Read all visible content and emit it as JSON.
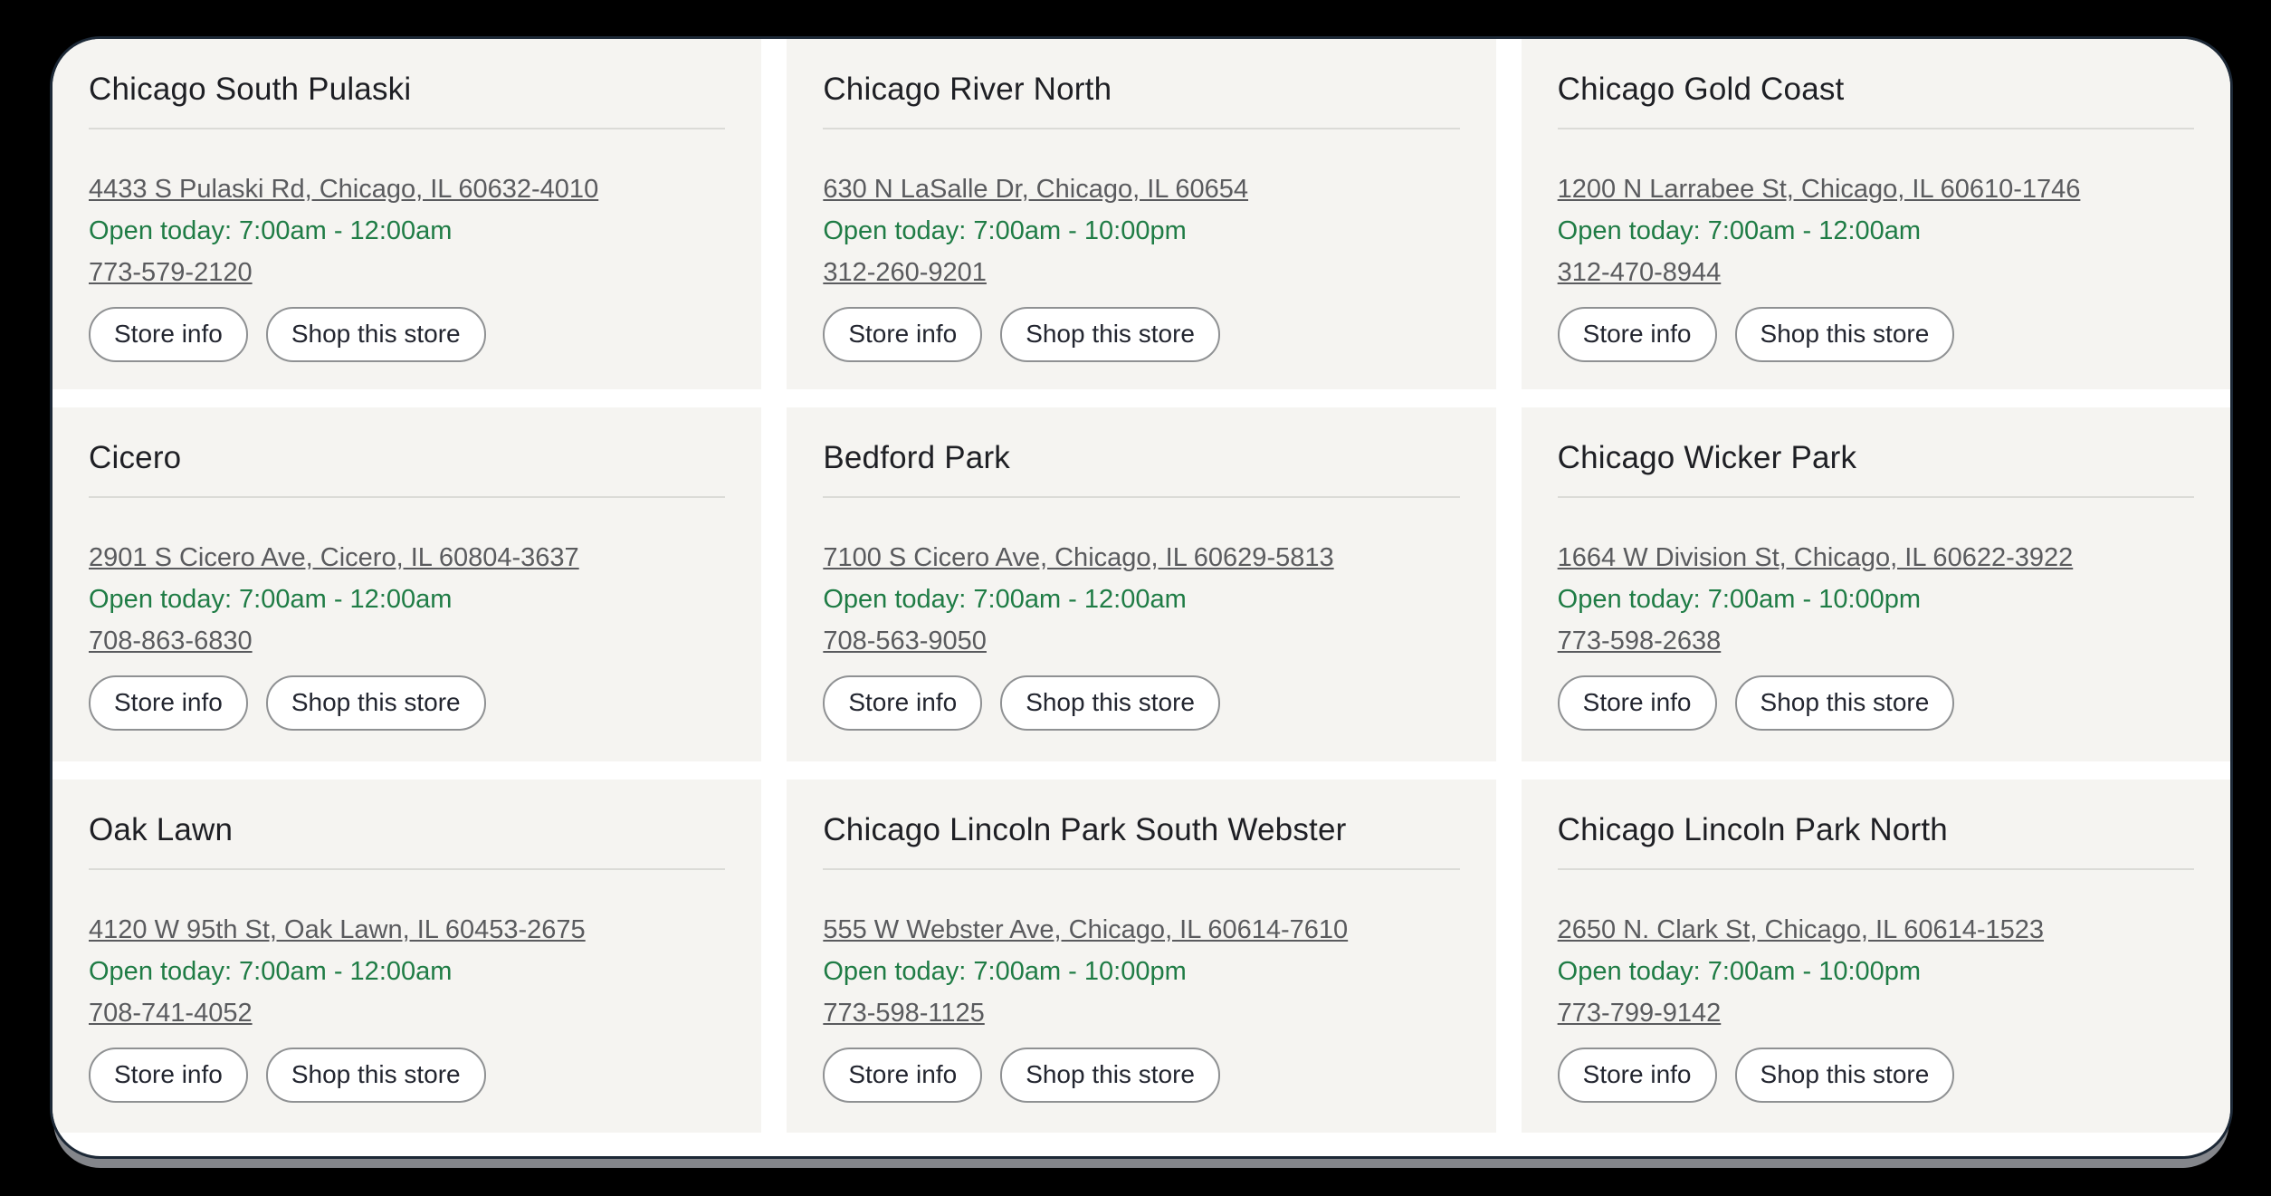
{
  "theme": {
    "page_background": "#000000",
    "panel_background": "#ffffff",
    "panel_border_color": "#1c2836",
    "card_background": "#f5f4f1",
    "title_color": "#1e1f24",
    "link_color": "#5a5b5e",
    "hours_green": "#1f7c45",
    "button_border_color": "#8f9193",
    "bottom_bar_color": "#84868b"
  },
  "actions": {
    "store_info_label": "Store info",
    "shop_this_store_label": "Shop this store"
  },
  "stores": [
    {
      "name": "Chicago South Pulaski",
      "address": "4433 S Pulaski Rd, Chicago, IL 60632-4010",
      "hours": "Open today: 7:00am - 12:00am",
      "phone": "773-579-2120"
    },
    {
      "name": "Chicago River North",
      "address": "630 N LaSalle Dr, Chicago, IL 60654",
      "hours": "Open today: 7:00am - 10:00pm",
      "phone": "312-260-9201"
    },
    {
      "name": "Chicago Gold Coast",
      "address": "1200 N Larrabee St, Chicago, IL 60610-1746",
      "hours": "Open today: 7:00am - 12:00am",
      "phone": "312-470-8944"
    },
    {
      "name": "Cicero",
      "address": "2901 S Cicero Ave, Cicero, IL 60804-3637",
      "hours": "Open today: 7:00am - 12:00am",
      "phone": "708-863-6830"
    },
    {
      "name": "Bedford Park",
      "address": "7100 S Cicero Ave, Chicago, IL 60629-5813",
      "hours": "Open today: 7:00am - 12:00am",
      "phone": "708-563-9050"
    },
    {
      "name": "Chicago Wicker Park",
      "address": "1664 W Division St, Chicago, IL 60622-3922",
      "hours": "Open today: 7:00am - 10:00pm",
      "phone": "773-598-2638"
    },
    {
      "name": "Oak Lawn",
      "address": "4120 W 95th St, Oak Lawn, IL 60453-2675",
      "hours": "Open today: 7:00am - 12:00am",
      "phone": "708-741-4052"
    },
    {
      "name": "Chicago Lincoln Park South Webster",
      "address": "555 W Webster Ave, Chicago, IL 60614-7610",
      "hours": "Open today: 7:00am - 10:00pm",
      "phone": "773-598-1125"
    },
    {
      "name": "Chicago Lincoln Park North",
      "address": "2650 N. Clark St, Chicago, IL 60614-1523",
      "hours": "Open today: 7:00am - 10:00pm",
      "phone": "773-799-9142"
    }
  ]
}
